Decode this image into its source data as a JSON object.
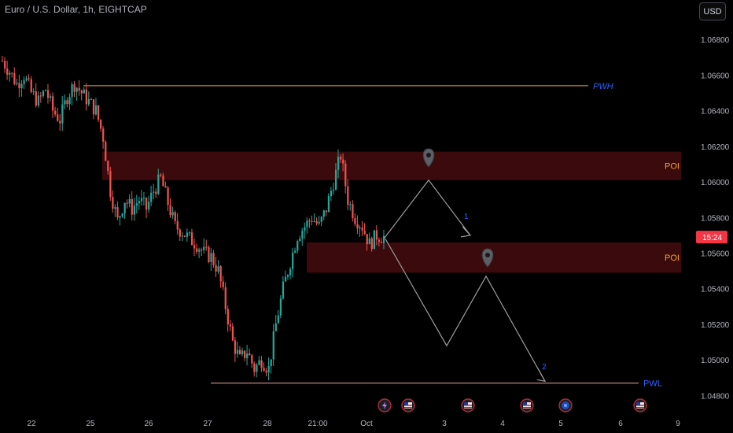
{
  "header": {
    "symbol_title": "Euro / U.S. Dollar, 1h, EIGHTCAP",
    "currency_button": "USD"
  },
  "price_label": {
    "text": "15:24",
    "value": 1.0569,
    "color": "#f23645"
  },
  "colors": {
    "up": "#26a69a",
    "down": "#ef5350",
    "level_line": "#f5a623",
    "label_blue": "#2962ff",
    "poi_zone": "#3a0a0c",
    "poi_text": "#f5a623",
    "path_line": "#9c9c9c"
  },
  "chart_data": {
    "type": "candlestick",
    "title": "Euro / U.S. Dollar, 1h, EIGHTCAP",
    "x_ticks": [
      "22",
      "25",
      "26",
      "27",
      "28",
      "21:00",
      "Oct",
      "3",
      "4",
      "5",
      "6",
      "9"
    ],
    "y_ticks": [
      "1.06800",
      "1.06600",
      "1.06400",
      "1.06200",
      "1.06000",
      "1.05800",
      "1.05600",
      "1.05400",
      "1.05200",
      "1.05000",
      "1.04800"
    ],
    "ylim": [
      1.0474,
      1.0688
    ],
    "grid": false,
    "levels": [
      {
        "label": "PWH",
        "price": 1.0654
      },
      {
        "label": "PWL",
        "price": 1.0487
      }
    ],
    "zones": [
      {
        "label": "POI",
        "top": 1.0617,
        "bottom": 1.0601
      },
      {
        "label": "POI",
        "top": 1.0566,
        "bottom": 1.0549
      }
    ],
    "projection": {
      "path_up": [
        [
          1.0568,
          1.0601,
          1.057
        ]
      ],
      "path_down": [
        1.0568,
        1.0508,
        1.0547,
        1.0488
      ],
      "labels": [
        "1",
        "2"
      ]
    },
    "candle_anchors": [
      1.0668,
      1.0662,
      1.0655,
      1.066,
      1.065,
      1.0645,
      1.0652,
      1.064,
      1.0635,
      1.0648,
      1.0655,
      1.065,
      1.0645,
      1.064,
      1.0625,
      1.0595,
      1.0578,
      1.059,
      1.0585,
      1.059,
      1.0585,
      1.0595,
      1.0602,
      1.0588,
      1.0575,
      1.0572,
      1.0568,
      1.0565,
      1.056,
      1.0558,
      1.055,
      1.053,
      1.051,
      1.05,
      1.0505,
      1.0495,
      1.05,
      1.0495,
      1.052,
      1.054,
      1.0555,
      1.057,
      1.0575,
      1.058,
      1.0575,
      1.0585,
      1.06,
      1.0615,
      1.059,
      1.058,
      1.0575,
      1.0565,
      1.057,
      1.0569
    ],
    "event_icons": [
      "lightning-icon",
      "us-flag-icon",
      "us-flag-icon",
      "us-flag-icon",
      "globe-icon",
      "us-flag-icon"
    ]
  }
}
